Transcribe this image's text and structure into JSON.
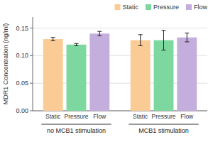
{
  "chart_data": {
    "type": "bar",
    "ylabel": "MDR1 Concentration (ng/ml)",
    "categories": [
      "no MCB1 stimulation",
      "MCB1 stimulation"
    ],
    "series": [
      {
        "name": "Static",
        "color": "#FBCB96",
        "values": [
          0.13,
          0.128
        ],
        "errors": [
          0.003,
          0.01
        ]
      },
      {
        "name": "Pressure",
        "color": "#7DD8A0",
        "values": [
          0.12,
          0.128
        ],
        "errors": [
          0.002,
          0.018
        ]
      },
      {
        "name": "Flow",
        "color": "#C4AEDE",
        "values": [
          0.14,
          0.133
        ],
        "errors": [
          0.004,
          0.008
        ]
      }
    ],
    "ylim": [
      0.0,
      0.17
    ],
    "yticks": [
      {
        "value": 0.0,
        "label": "0.00"
      },
      0.05,
      {
        "value": 0.1,
        "label": "0.10"
      },
      0.15
    ],
    "grid": true,
    "legend": "upper right"
  }
}
